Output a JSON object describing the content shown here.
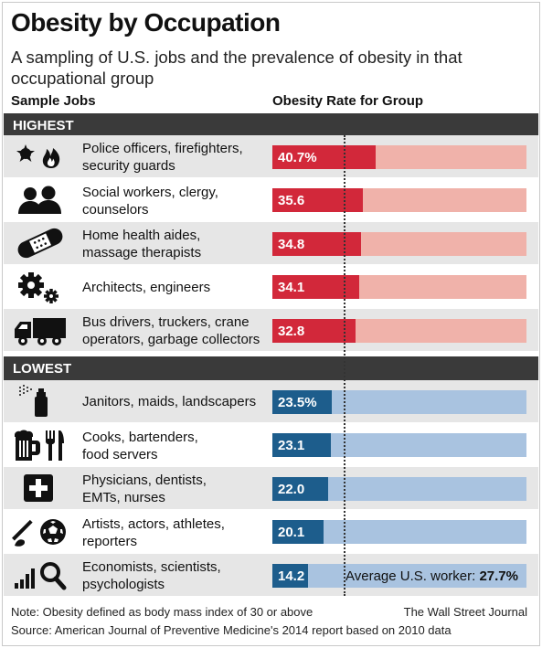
{
  "header": {
    "title": "Obesity by Occupation",
    "subtitle": "A sampling of U.S. jobs and the prevalence of obesity in that occupational group",
    "col_jobs": "Sample Jobs",
    "col_rate": "Obesity Rate for Group"
  },
  "chart_data": {
    "type": "bar",
    "title": "Obesity by Occupation",
    "subtitle": "A sampling of U.S. jobs and the prevalence of obesity in that occupational group",
    "xlabel": "Obesity Rate for Group",
    "ylabel": "Sample Jobs",
    "xlim": [
      0,
      100
    ],
    "reference": {
      "label": "Average U.S. worker:",
      "value": 27.7,
      "value_label": "27.7%"
    },
    "groups": [
      {
        "name": "HIGHEST",
        "bar_color": "#d2283a",
        "track_color": "#f0b2aa",
        "items": [
          {
            "job_line1": "Police officers, firefighters,",
            "job_line2": "security guards",
            "value": 40.7,
            "label": "40.7%",
            "icon": "police-fire-icon"
          },
          {
            "job_line1": "Social workers, clergy,",
            "job_line2": "counselors",
            "value": 35.6,
            "label": "35.6",
            "icon": "people-icon"
          },
          {
            "job_line1": "Home health aides,",
            "job_line2": "massage therapists",
            "value": 34.8,
            "label": "34.8",
            "icon": "bandage-icon"
          },
          {
            "job_line1": "Architects, engineers",
            "job_line2": "",
            "value": 34.1,
            "label": "34.1",
            "icon": "gears-icon"
          },
          {
            "job_line1": "Bus drivers, truckers, crane",
            "job_line2": "operators, garbage collectors",
            "value": 32.8,
            "label": "32.8",
            "icon": "truck-icon"
          }
        ]
      },
      {
        "name": "LOWEST",
        "bar_color": "#1d5d8c",
        "track_color": "#a9c3e0",
        "items": [
          {
            "job_line1": "Janitors, maids, landscapers",
            "job_line2": "",
            "value": 23.5,
            "label": "23.5%",
            "icon": "spray-can-icon"
          },
          {
            "job_line1": "Cooks, bartenders,",
            "job_line2": "food servers",
            "value": 23.1,
            "label": "23.1",
            "icon": "beer-fork-knife-icon"
          },
          {
            "job_line1": "Physicians, dentists,",
            "job_line2": "EMTs, nurses",
            "value": 22.0,
            "label": "22.0",
            "icon": "medical-cross-icon"
          },
          {
            "job_line1": "Artists, actors, athletes,",
            "job_line2": "reporters",
            "value": 20.1,
            "label": "20.1",
            "icon": "brush-ball-icon"
          },
          {
            "job_line1": "Economists, scientists,",
            "job_line2": "psychologists",
            "value": 14.2,
            "label": "14.2",
            "icon": "bars-magnifier-icon"
          }
        ]
      }
    ]
  },
  "footer": {
    "note": "Note: Obesity defined as body mass index of 30 or above",
    "source": "Source: American Journal of Preventive Medicine's 2014 report based on 2010 data",
    "credit": "The Wall Street Journal"
  }
}
